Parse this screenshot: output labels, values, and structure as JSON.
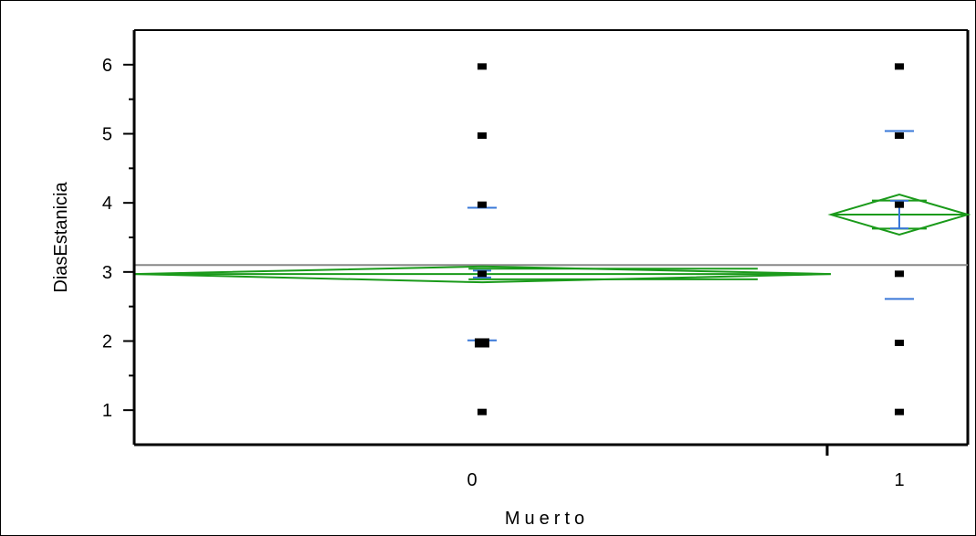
{
  "chart_data": {
    "type": "scatter",
    "title": "",
    "xlabel": "Muerto",
    "ylabel": "DiasEstanicia",
    "categories": [
      "0",
      "1"
    ],
    "yticks": [
      1,
      2,
      3,
      4,
      5,
      6
    ],
    "ylim": [
      0.5,
      6.5
    ],
    "grand_mean": 3.1,
    "points": [
      {
        "x": "0",
        "y": 1
      },
      {
        "x": "0",
        "y": 2
      },
      {
        "x": "0",
        "y": 3
      },
      {
        "x": "0",
        "y": 4
      },
      {
        "x": "0",
        "y": 5
      },
      {
        "x": "0",
        "y": 6
      },
      {
        "x": "1",
        "y": 1
      },
      {
        "x": "1",
        "y": 2
      },
      {
        "x": "1",
        "y": 3
      },
      {
        "x": "1",
        "y": 4
      },
      {
        "x": "1",
        "y": 5
      },
      {
        "x": "1",
        "y": 6
      }
    ],
    "groups": [
      {
        "category": "0",
        "mean": 2.97,
        "ci_lower": 2.85,
        "ci_upper": 3.08,
        "mean_err_lower": 2.92,
        "mean_err_upper": 3.02,
        "sd_lower": 2.01,
        "sd_upper": 3.93
      },
      {
        "category": "1",
        "mean": 3.83,
        "ci_lower": 3.54,
        "ci_upper": 4.12,
        "mean_err_lower": 3.63,
        "mean_err_upper": 4.03,
        "sd_lower": 2.61,
        "sd_upper": 5.04
      }
    ],
    "colors": {
      "diamond": "#1a9a1a",
      "error_bars": "#3a78d8",
      "grand_mean": "#888888",
      "points": "#000000"
    },
    "grid": false,
    "legend": "none"
  }
}
